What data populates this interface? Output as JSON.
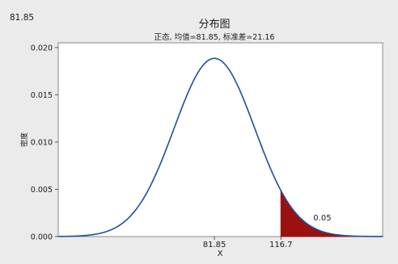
{
  "corner_label": "81.85",
  "chart_data": {
    "type": "area",
    "title": "分布图",
    "subtitle": "正态, 均值=81.85, 标准差=21.16",
    "xlabel": "X",
    "ylabel": "密度",
    "distribution": {
      "family": "normal",
      "mean": 81.85,
      "sd": 21.16
    },
    "xlim": [
      0,
      170
    ],
    "ylim": [
      0,
      0.0205
    ],
    "y_ticks": [
      0.0,
      0.005,
      0.01,
      0.015,
      0.02
    ],
    "y_tick_labels": [
      "0.000",
      "0.005",
      "0.010",
      "0.015",
      "0.020"
    ],
    "x_ticks": [
      81.85,
      116.7
    ],
    "x_tick_labels": [
      "81.85",
      "116.7"
    ],
    "shaded_region": {
      "from": 116.7,
      "to": 170,
      "probability_label": "0.05",
      "color": "#9b1111"
    },
    "line_color": "#1f4e9c",
    "background_color": "#ebebeb",
    "plot_background_color": "#ffffff",
    "grid": false
  }
}
